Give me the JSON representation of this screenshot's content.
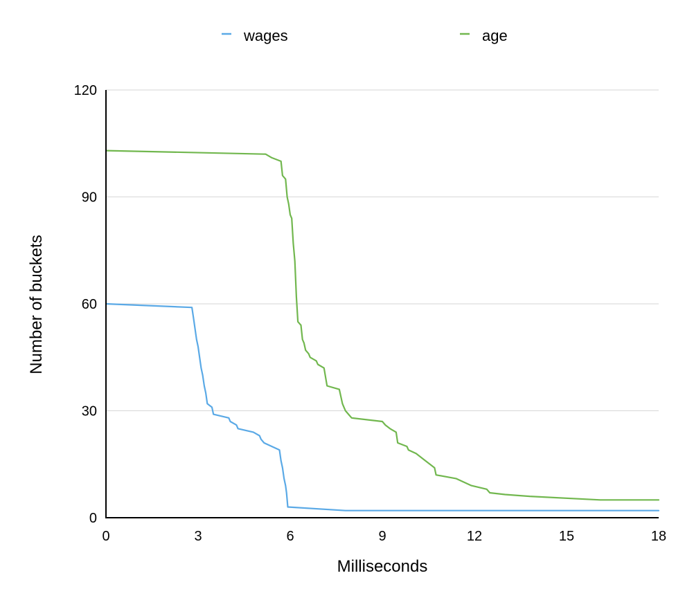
{
  "chart_data": {
    "type": "line",
    "xlabel": "Milliseconds",
    "ylabel": "Number of buckets",
    "xlim": [
      0,
      18
    ],
    "ylim": [
      0,
      120
    ],
    "xticks": [
      "0",
      "3",
      "6",
      "9",
      "12",
      "15",
      "18"
    ],
    "yticks": [
      "0",
      "30",
      "60",
      "90",
      "120"
    ],
    "grid": "horizontal",
    "legend_position": "top",
    "series": [
      {
        "name": "wages",
        "color": "#5AA9E6",
        "points": [
          [
            0,
            60
          ],
          [
            2.8,
            59
          ],
          [
            2.85,
            56
          ],
          [
            2.95,
            50
          ],
          [
            3.0,
            48
          ],
          [
            3.05,
            45
          ],
          [
            3.1,
            42
          ],
          [
            3.15,
            40
          ],
          [
            3.2,
            37
          ],
          [
            3.25,
            35
          ],
          [
            3.3,
            32
          ],
          [
            3.45,
            31
          ],
          [
            3.5,
            29
          ],
          [
            4.0,
            28
          ],
          [
            4.05,
            27
          ],
          [
            4.25,
            26
          ],
          [
            4.3,
            25
          ],
          [
            4.8,
            24
          ],
          [
            5.0,
            23
          ],
          [
            5.05,
            22
          ],
          [
            5.15,
            21
          ],
          [
            5.65,
            19
          ],
          [
            5.7,
            16
          ],
          [
            5.75,
            14
          ],
          [
            5.8,
            11
          ],
          [
            5.85,
            9
          ],
          [
            5.88,
            7
          ],
          [
            5.92,
            3
          ],
          [
            7.8,
            2
          ],
          [
            18,
            2
          ]
        ]
      },
      {
        "name": "age",
        "color": "#71B74E",
        "points": [
          [
            0,
            103
          ],
          [
            5.2,
            102
          ],
          [
            5.4,
            101
          ],
          [
            5.7,
            100
          ],
          [
            5.75,
            96
          ],
          [
            5.85,
            95
          ],
          [
            5.9,
            90
          ],
          [
            5.95,
            88
          ],
          [
            6.0,
            85
          ],
          [
            6.05,
            84
          ],
          [
            6.1,
            77
          ],
          [
            6.15,
            72
          ],
          [
            6.2,
            62
          ],
          [
            6.25,
            55
          ],
          [
            6.35,
            54
          ],
          [
            6.4,
            50
          ],
          [
            6.45,
            49
          ],
          [
            6.5,
            47
          ],
          [
            6.6,
            46
          ],
          [
            6.65,
            45
          ],
          [
            6.85,
            44
          ],
          [
            6.9,
            43
          ],
          [
            7.1,
            42
          ],
          [
            7.2,
            37
          ],
          [
            7.6,
            36
          ],
          [
            7.7,
            32
          ],
          [
            7.75,
            31
          ],
          [
            7.8,
            30
          ],
          [
            7.9,
            29
          ],
          [
            8.0,
            28
          ],
          [
            9.0,
            27
          ],
          [
            9.1,
            26
          ],
          [
            9.25,
            25
          ],
          [
            9.45,
            24
          ],
          [
            9.5,
            21
          ],
          [
            9.8,
            20
          ],
          [
            9.85,
            19
          ],
          [
            10.1,
            18
          ],
          [
            10.4,
            16
          ],
          [
            10.7,
            14
          ],
          [
            10.75,
            12
          ],
          [
            11.4,
            11
          ],
          [
            11.9,
            9
          ],
          [
            12.4,
            8
          ],
          [
            12.5,
            7
          ],
          [
            13.0,
            6.5
          ],
          [
            13.8,
            6
          ],
          [
            16.1,
            5
          ],
          [
            18,
            5
          ]
        ]
      }
    ]
  }
}
